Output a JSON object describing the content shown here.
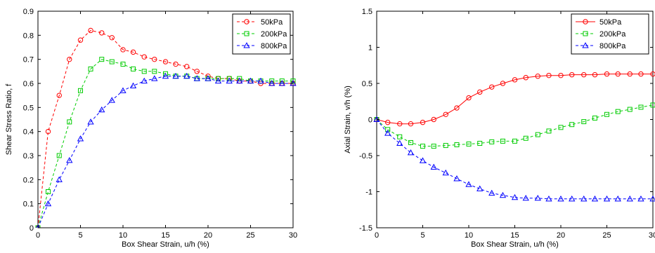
{
  "chart_data": [
    {
      "type": "line",
      "xlabel": "Box Shear Strain, u/h (%)",
      "ylabel": "Shear Stress Ratio, f",
      "xlim": [
        0,
        30
      ],
      "ylim": [
        0,
        0.9
      ],
      "xticks": [
        0,
        5,
        10,
        15,
        20,
        25,
        30
      ],
      "yticks": [
        0,
        0.1,
        0.2,
        0.3,
        0.4,
        0.5,
        0.6,
        0.7,
        0.8,
        0.9
      ],
      "xtick_labels": [
        "0",
        "5",
        "10",
        "15",
        "20",
        "25",
        "30"
      ],
      "ytick_labels": [
        "0",
        "0.1",
        "0.2",
        "0.3",
        "0.4",
        "0.5",
        "0.6",
        "0.7",
        "0.8",
        "0.9"
      ],
      "grid": false,
      "legend_position": "top-right",
      "series": [
        {
          "name": "50kPa",
          "color": "#ff0000",
          "marker": "circle",
          "line": "dashed",
          "x": [
            0,
            1.2,
            2.5,
            3.7,
            5.0,
            6.2,
            7.5,
            8.7,
            10.0,
            11.2,
            12.5,
            13.7,
            15.0,
            16.2,
            17.5,
            18.7,
            20.0,
            21.2,
            22.5,
            23.7,
            25.0,
            26.2,
            27.5,
            28.7,
            30.0
          ],
          "y": [
            0,
            0.4,
            0.55,
            0.7,
            0.78,
            0.82,
            0.81,
            0.79,
            0.74,
            0.73,
            0.71,
            0.7,
            0.69,
            0.68,
            0.67,
            0.65,
            0.63,
            0.62,
            0.62,
            0.61,
            0.61,
            0.6,
            0.6,
            0.6,
            0.6
          ]
        },
        {
          "name": "200kPa",
          "color": "#00cc00",
          "marker": "square",
          "line": "dashed",
          "x": [
            0,
            1.2,
            2.5,
            3.7,
            5.0,
            6.2,
            7.5,
            8.7,
            10.0,
            11.2,
            12.5,
            13.7,
            15.0,
            16.2,
            17.5,
            18.7,
            20.0,
            21.2,
            22.5,
            23.7,
            25.0,
            26.2,
            27.5,
            28.7,
            30.0
          ],
          "y": [
            0,
            0.15,
            0.3,
            0.44,
            0.57,
            0.66,
            0.7,
            0.69,
            0.68,
            0.66,
            0.65,
            0.65,
            0.64,
            0.63,
            0.63,
            0.62,
            0.62,
            0.62,
            0.62,
            0.62,
            0.61,
            0.61,
            0.61,
            0.61,
            0.61
          ]
        },
        {
          "name": "800kPa",
          "color": "#0000ff",
          "marker": "triangle",
          "line": "dashed",
          "x": [
            0,
            1.2,
            2.5,
            3.7,
            5.0,
            6.2,
            7.5,
            8.7,
            10.0,
            11.2,
            12.5,
            13.7,
            15.0,
            16.2,
            17.5,
            18.7,
            20.0,
            21.2,
            22.5,
            23.7,
            25.0,
            26.2,
            27.5,
            28.7,
            30.0
          ],
          "y": [
            0,
            0.1,
            0.2,
            0.28,
            0.37,
            0.44,
            0.49,
            0.53,
            0.57,
            0.59,
            0.61,
            0.62,
            0.63,
            0.63,
            0.63,
            0.62,
            0.62,
            0.61,
            0.61,
            0.61,
            0.61,
            0.61,
            0.6,
            0.6,
            0.6
          ]
        }
      ]
    },
    {
      "type": "line",
      "xlabel": "Box Shear Strain, u/h (%)",
      "ylabel": "Axial Strain, v/h (%)",
      "xlim": [
        0,
        30
      ],
      "ylim": [
        -1.5,
        1.5
      ],
      "xticks": [
        0,
        5,
        10,
        15,
        20,
        25,
        30
      ],
      "yticks": [
        -1.5,
        -1,
        -0.5,
        0,
        0.5,
        1,
        1.5
      ],
      "xtick_labels": [
        "0",
        "5",
        "10",
        "15",
        "20",
        "25",
        "30"
      ],
      "ytick_labels": [
        "-1.5",
        "-1",
        "-0.5",
        "0",
        "0.5",
        "1",
        "1.5"
      ],
      "grid": false,
      "legend_position": "top-right",
      "series": [
        {
          "name": "50kPa",
          "color": "#ff0000",
          "marker": "circle",
          "line": "solid",
          "x": [
            0,
            1.2,
            2.5,
            3.7,
            5.0,
            6.2,
            7.5,
            8.7,
            10.0,
            11.2,
            12.5,
            13.7,
            15.0,
            16.2,
            17.5,
            18.7,
            20.0,
            21.2,
            22.5,
            23.7,
            25.0,
            26.2,
            27.5,
            28.7,
            30.0
          ],
          "y": [
            0,
            -0.04,
            -0.06,
            -0.06,
            -0.04,
            0.0,
            0.07,
            0.16,
            0.3,
            0.38,
            0.45,
            0.5,
            0.55,
            0.58,
            0.6,
            0.61,
            0.61,
            0.62,
            0.62,
            0.62,
            0.63,
            0.63,
            0.63,
            0.63,
            0.63
          ]
        },
        {
          "name": "200kPa",
          "color": "#00cc00",
          "marker": "square",
          "line": "dashed",
          "x": [
            0,
            1.2,
            2.5,
            3.7,
            5.0,
            6.2,
            7.5,
            8.7,
            10.0,
            11.2,
            12.5,
            13.7,
            15.0,
            16.2,
            17.5,
            18.7,
            20.0,
            21.2,
            22.5,
            23.7,
            25.0,
            26.2,
            27.5,
            28.7,
            30.0
          ],
          "y": [
            0,
            -0.14,
            -0.24,
            -0.32,
            -0.37,
            -0.37,
            -0.36,
            -0.35,
            -0.34,
            -0.33,
            -0.31,
            -0.3,
            -0.3,
            -0.26,
            -0.21,
            -0.16,
            -0.11,
            -0.07,
            -0.03,
            0.02,
            0.07,
            0.11,
            0.14,
            0.17,
            0.2
          ]
        },
        {
          "name": "800kPa",
          "color": "#0000ff",
          "marker": "triangle",
          "line": "dashed",
          "x": [
            0,
            1.2,
            2.5,
            3.7,
            5.0,
            6.2,
            7.5,
            8.7,
            10.0,
            11.2,
            12.5,
            13.7,
            15.0,
            16.2,
            17.5,
            18.7,
            20.0,
            21.2,
            22.5,
            23.7,
            25.0,
            26.2,
            27.5,
            28.7,
            30.0
          ],
          "y": [
            0,
            -0.19,
            -0.33,
            -0.46,
            -0.57,
            -0.66,
            -0.74,
            -0.82,
            -0.9,
            -0.96,
            -1.02,
            -1.05,
            -1.08,
            -1.09,
            -1.09,
            -1.1,
            -1.1,
            -1.1,
            -1.1,
            -1.1,
            -1.1,
            -1.1,
            -1.1,
            -1.1,
            -1.1
          ]
        }
      ]
    }
  ]
}
